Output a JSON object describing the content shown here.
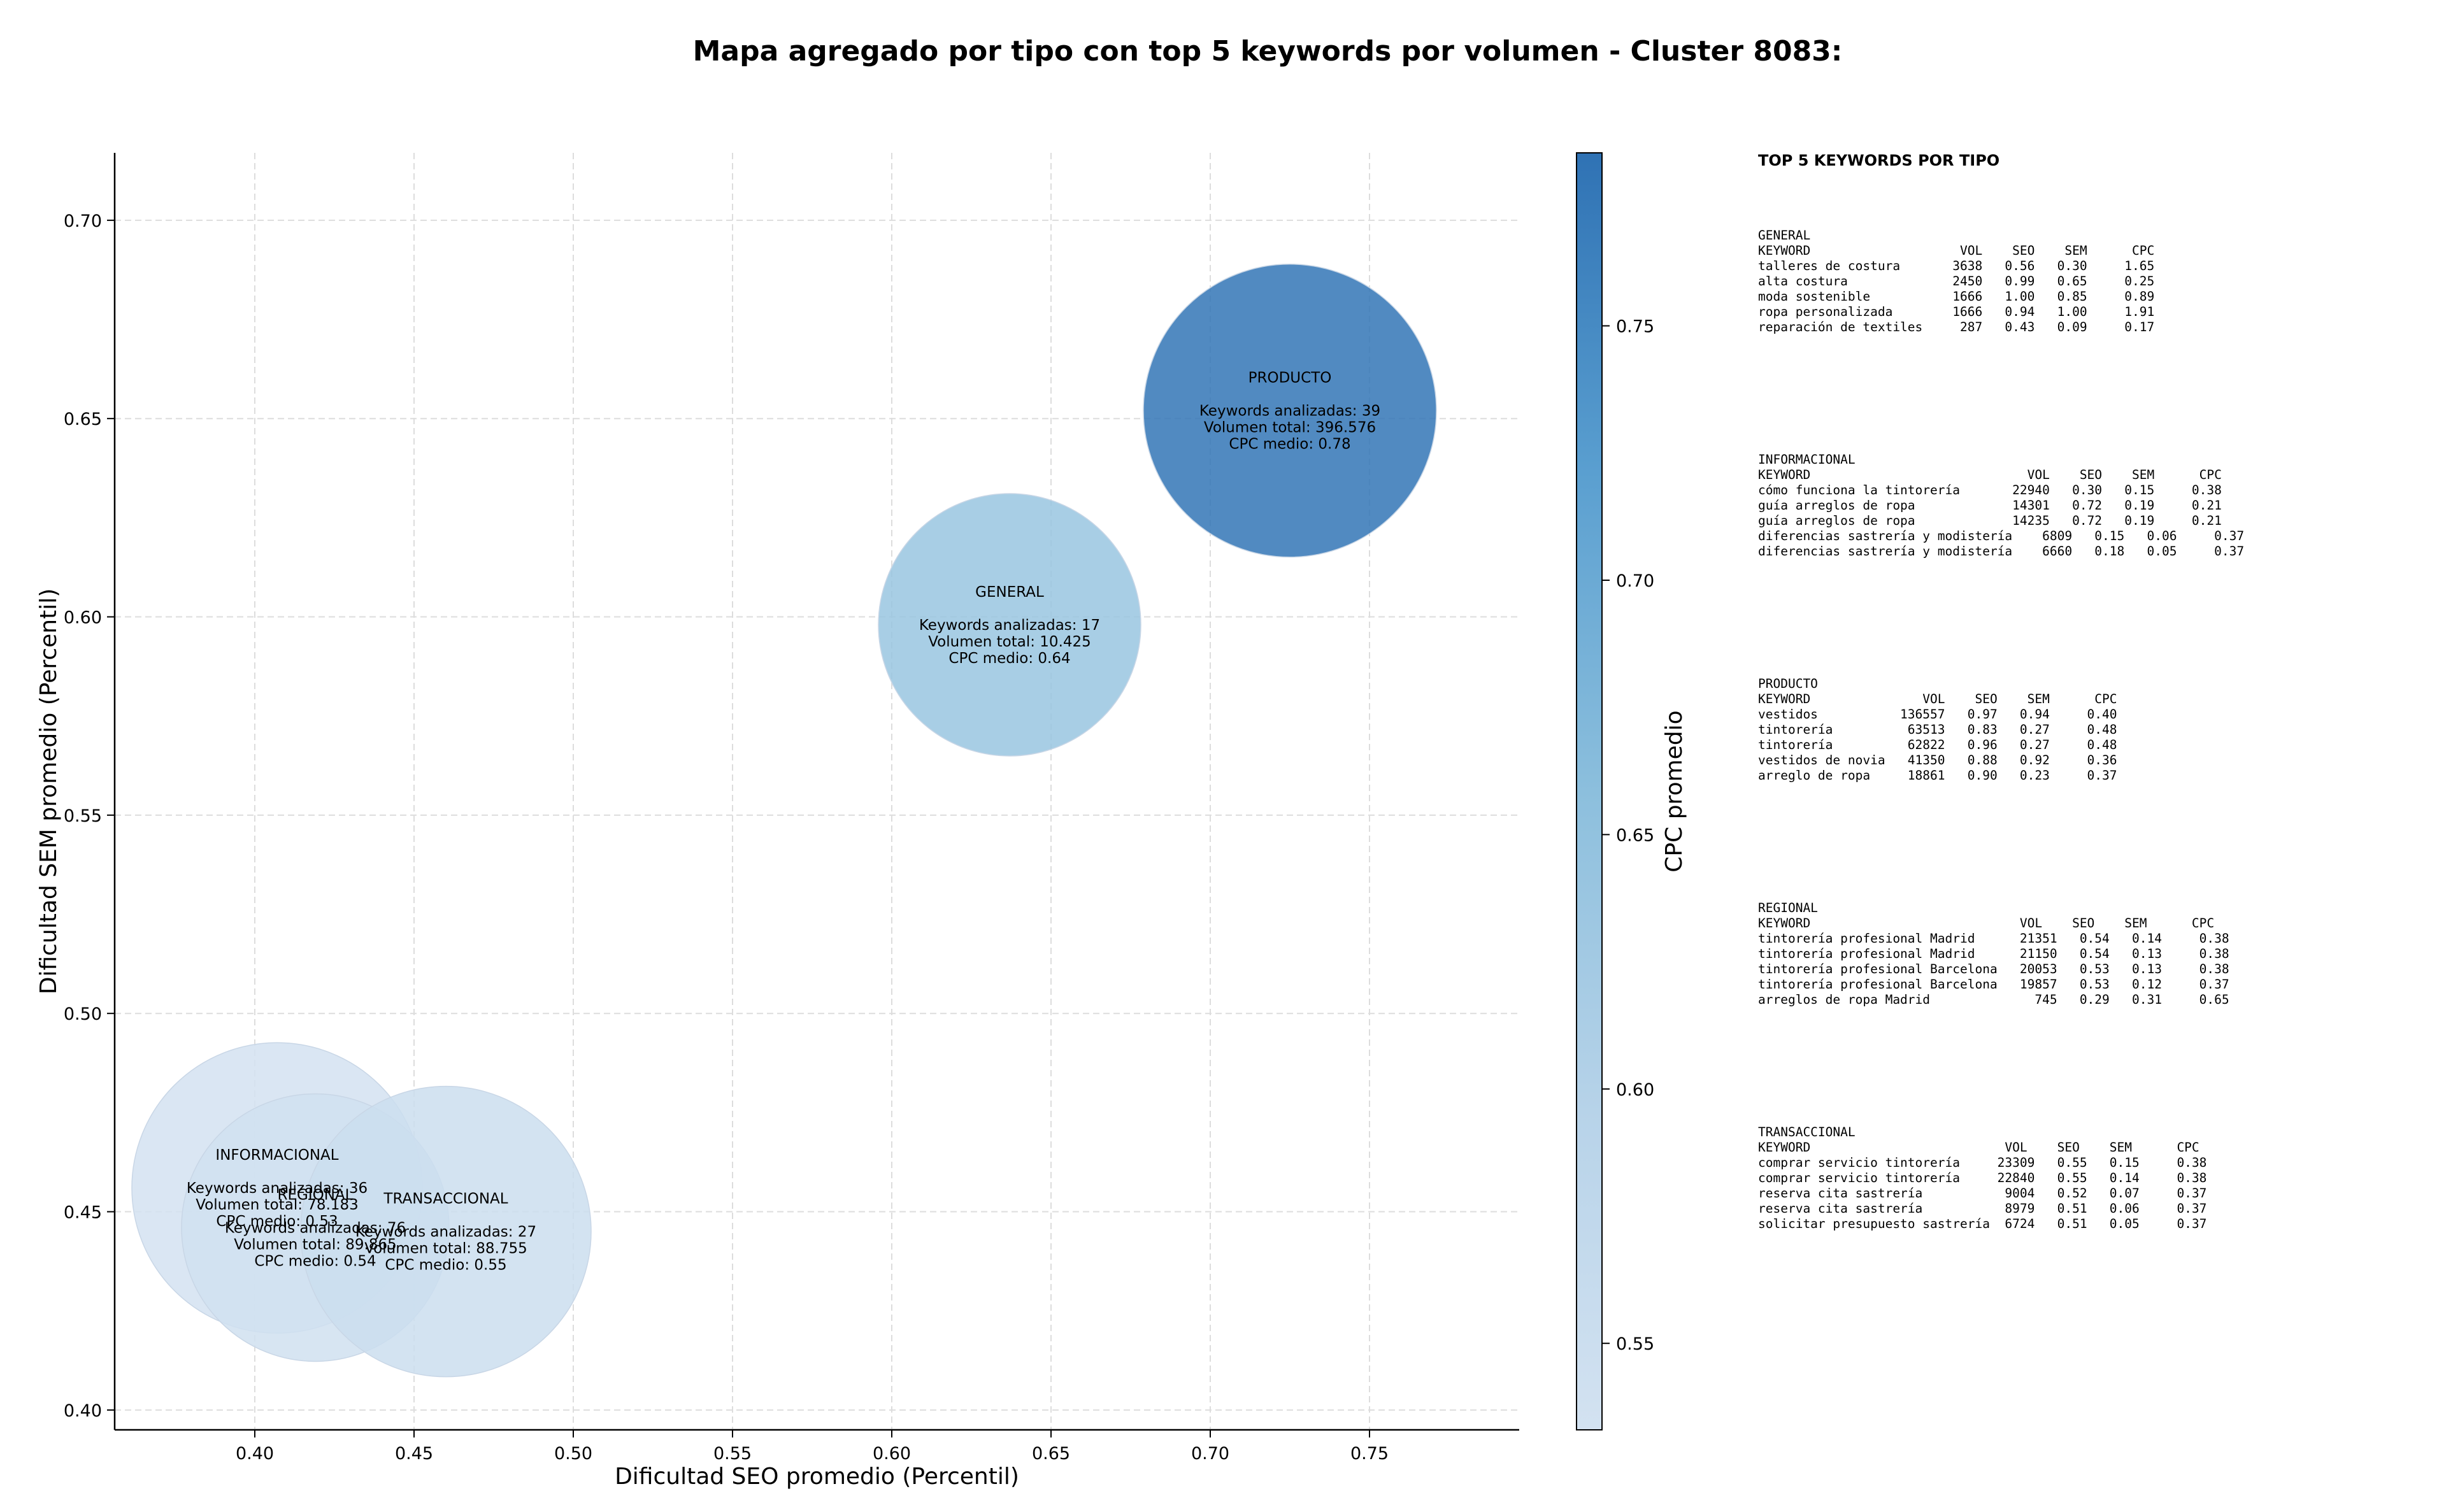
{
  "title": "Mapa agregado por tipo con top 5 keywords por volumen - Cluster 8083:",
  "chart_data": {
    "type": "scatter",
    "subtype": "bubble",
    "xlabel": "Dificultad SEO promedio (Percentil)",
    "ylabel": "Dificultad SEM promedio (Percentil)",
    "xlim": [
      0.356,
      0.797
    ],
    "ylim": [
      0.395,
      0.717
    ],
    "xticks": [
      "0.40",
      "0.45",
      "0.50",
      "0.55",
      "0.60",
      "0.65",
      "0.70",
      "0.75"
    ],
    "yticks": [
      "0.40",
      "0.45",
      "0.50",
      "0.55",
      "0.60",
      "0.65",
      "0.70"
    ],
    "grid": true,
    "colorbar": {
      "label": "CPC promedio",
      "range": [
        0.533,
        0.784
      ],
      "ticks": [
        "0.55",
        "0.60",
        "0.65",
        "0.70",
        "0.75"
      ],
      "colormap": "Blues",
      "color_low": "#d3e2f1",
      "color_high": "#2f72b4"
    },
    "bubbles": [
      {
        "name": "INFORMACIONAL",
        "x": 0.407,
        "y": 0.456,
        "cpc": 0.53,
        "lines": [
          "INFORMACIONAL",
          "",
          "Keywords analizadas: 36",
          "Volumen total: 78.183",
          "CPC medio: 0.53"
        ]
      },
      {
        "name": "REGIONAL",
        "x": 0.419,
        "y": 0.446,
        "cpc": 0.54,
        "lines": [
          "REGIONAL",
          "",
          "Keywords analizadas: 76",
          "Volumen total: 89.865",
          "CPC medio: 0.54"
        ]
      },
      {
        "name": "TRANSACCIONAL",
        "x": 0.46,
        "y": 0.445,
        "cpc": 0.55,
        "lines": [
          "TRANSACCIONAL",
          "",
          "Keywords analizadas: 27",
          "Volumen total: 88.755",
          "CPC medio: 0.55"
        ]
      },
      {
        "name": "GENERAL",
        "x": 0.637,
        "y": 0.598,
        "cpc": 0.64,
        "lines": [
          "GENERAL",
          "",
          "Keywords analizadas: 17",
          "Volumen total: 10.425",
          "CPC medio: 0.64"
        ]
      },
      {
        "name": "PRODUCTO",
        "x": 0.725,
        "y": 0.652,
        "cpc": 0.78,
        "lines": [
          "PRODUCTO",
          "",
          "Keywords analizadas: 39",
          "Volumen total: 396.576",
          "CPC medio: 0.78"
        ]
      }
    ]
  },
  "side_panel": {
    "title": "TOP 5 KEYWORDS POR TIPO",
    "groups": [
      {
        "name": "GENERAL",
        "lines": [
          "GENERAL",
          "KEYWORD                    VOL    SEO    SEM      CPC",
          "talleres de costura       3638   0.56   0.30     1.65",
          "alta costura              2450   0.99   0.65     0.25",
          "moda sostenible           1666   1.00   0.85     0.89",
          "ropa personalizada        1666   0.94   1.00     1.91",
          "reparación de textiles     287   0.43   0.09     0.17"
        ]
      },
      {
        "name": "INFORMACIONAL",
        "lines": [
          "INFORMACIONAL",
          "KEYWORD                             VOL    SEO    SEM      CPC",
          "cómo funciona la tintorería       22940   0.30   0.15     0.38",
          "guía arreglos de ropa             14301   0.72   0.19     0.21",
          "guía arreglos de ropa             14235   0.72   0.19     0.21",
          "diferencias sastrería y modistería    6809   0.15   0.06     0.37",
          "diferencias sastrería y modistería    6660   0.18   0.05     0.37"
        ]
      },
      {
        "name": "PRODUCTO",
        "lines": [
          "PRODUCTO",
          "KEYWORD               VOL    SEO    SEM      CPC",
          "vestidos           136557   0.97   0.94     0.40",
          "tintorería          63513   0.83   0.27     0.48",
          "tintorería          62822   0.96   0.27     0.48",
          "vestidos de novia   41350   0.88   0.92     0.36",
          "arreglo de ropa     18861   0.90   0.23     0.37"
        ]
      },
      {
        "name": "REGIONAL",
        "lines": [
          "REGIONAL",
          "KEYWORD                            VOL    SEO    SEM      CPC",
          "tintorería profesional Madrid      21351   0.54   0.14     0.38",
          "tintorería profesional Madrid      21150   0.54   0.13     0.38",
          "tintorería profesional Barcelona   20053   0.53   0.13     0.38",
          "tintorería profesional Barcelona   19857   0.53   0.12     0.37",
          "arreglos de ropa Madrid              745   0.29   0.31     0.65"
        ]
      },
      {
        "name": "TRANSACCIONAL",
        "lines": [
          "TRANSACCIONAL",
          "KEYWORD                          VOL    SEO    SEM      CPC",
          "comprar servicio tintorería     23309   0.55   0.15     0.38",
          "comprar servicio tintorería     22840   0.55   0.14     0.38",
          "reserva cita sastrería           9004   0.52   0.07     0.37",
          "reserva cita sastrería           8979   0.51   0.06     0.37",
          "solicitar presupuesto sastrería  6724   0.51   0.05     0.37"
        ]
      }
    ]
  }
}
